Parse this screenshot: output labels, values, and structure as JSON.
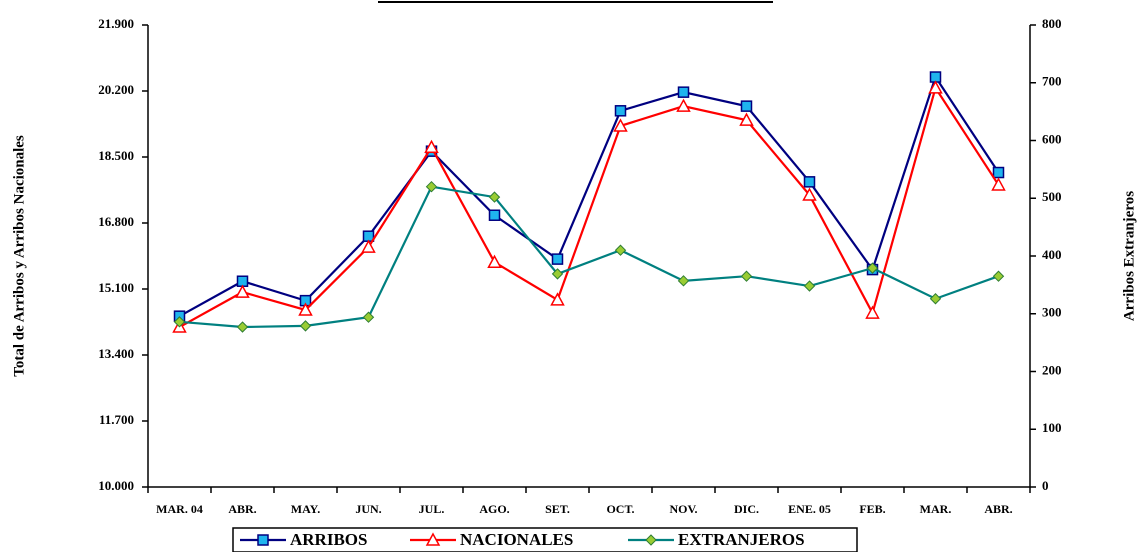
{
  "chart_data": {
    "type": "line",
    "y_label": "Total de Arribos y Arribos Nacionales",
    "y2_label": "Arribos Extranjeros",
    "categories": [
      "MAR. 04",
      "ABR.",
      "MAY.",
      "JUN.",
      "JUL.",
      "AGO.",
      "SET.",
      "OCT.",
      "NOV.",
      "DIC.",
      "ENE. 05",
      "FEB.",
      "MAR.",
      "ABR."
    ],
    "series": [
      {
        "name": "ARRIBOS",
        "color": "#000080",
        "marker": "square",
        "marker_color": "#1fb4ee",
        "values": [
          14400,
          15300,
          14800,
          16460,
          18650,
          17000,
          15870,
          19690,
          20170,
          19810,
          17860,
          15600,
          20560,
          18100
        ]
      },
      {
        "name": "NACIONALES",
        "color": "#ff0000",
        "marker": "triangle",
        "marker_color": "#ffffff",
        "values": [
          14120,
          15020,
          14560,
          16180,
          18750,
          15790,
          14820,
          19300,
          19810,
          19450,
          17520,
          14480,
          20280,
          17780
        ]
      },
      {
        "name": "EXTRANJEROS",
        "color": "#008080",
        "marker": "diamond",
        "marker_color": "#99cc33",
        "axis": "y2",
        "values": [
          286,
          277,
          279,
          294,
          520,
          502,
          369,
          410,
          357,
          365,
          348,
          379,
          326,
          365
        ]
      }
    ],
    "ylim": [
      10000,
      21900
    ],
    "yticks": [
      {
        "value": 10000,
        "label": "10.000"
      },
      {
        "value": 11700,
        "label": "11.700"
      },
      {
        "value": 13400,
        "label": "13.400"
      },
      {
        "value": 15100,
        "label": "15.100"
      },
      {
        "value": 16800,
        "label": "16.800"
      },
      {
        "value": 18500,
        "label": "18.500"
      },
      {
        "value": 20200,
        "label": "20.200"
      },
      {
        "value": 21900,
        "label": "21.900"
      }
    ],
    "y2lim": [
      0,
      800
    ],
    "y2ticks": [
      0,
      100,
      200,
      300,
      400,
      500,
      600,
      700,
      800
    ],
    "grid": false,
    "legend": "bottom"
  }
}
